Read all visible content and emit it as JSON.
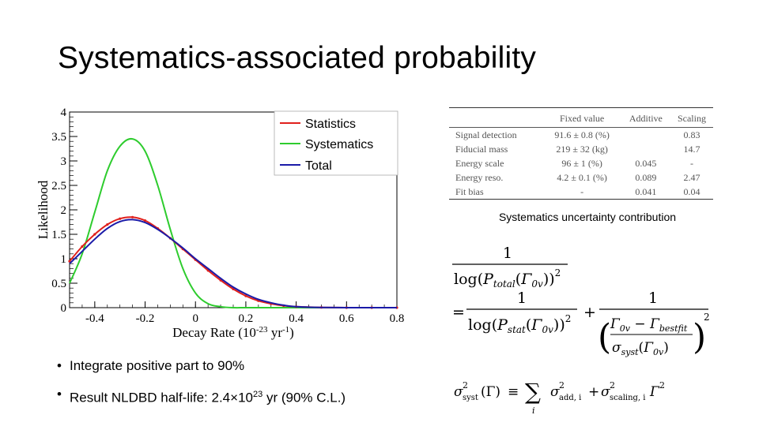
{
  "slide": {
    "title": "Systematics-associated probability"
  },
  "chart_data": {
    "type": "line",
    "title": "",
    "xlabel": "Decay Rate (10",
    "xlabel_exp": "-23",
    "xlabel_unit": " yr",
    "xlabel_unit_exp": "-1",
    "xlabel_close": ")",
    "ylabel": "Likelihood",
    "xlim": [
      -0.5,
      0.8
    ],
    "ylim": [
      0,
      4
    ],
    "xticks": [
      "-0.4",
      "-0.2",
      "0",
      "0.2",
      "0.4",
      "0.6",
      "0.8"
    ],
    "xtick_values": [
      -0.4,
      -0.2,
      0,
      0.2,
      0.4,
      0.6,
      0.8
    ],
    "yticks": [
      "0",
      "0.5",
      "1",
      "1.5",
      "2",
      "2.5",
      "3",
      "3.5",
      "4"
    ],
    "ytick_values": [
      0,
      0.5,
      1,
      1.5,
      2,
      2.5,
      3,
      3.5,
      4
    ],
    "legend_position": "top-right",
    "series": [
      {
        "name": "Statistics",
        "color": "#e0201c",
        "x": [
          -0.5,
          -0.45,
          -0.4,
          -0.35,
          -0.3,
          -0.25,
          -0.2,
          -0.15,
          -0.1,
          -0.05,
          0,
          0.05,
          0.1,
          0.15,
          0.2,
          0.25,
          0.3,
          0.35,
          0.4,
          0.5,
          0.6,
          0.7,
          0.8
        ],
        "y": [
          0.95,
          1.25,
          1.5,
          1.7,
          1.82,
          1.85,
          1.78,
          1.62,
          1.42,
          1.2,
          0.98,
          0.76,
          0.56,
          0.38,
          0.24,
          0.14,
          0.08,
          0.04,
          0.02,
          0.005,
          0,
          0,
          0
        ]
      },
      {
        "name": "Systematics",
        "color": "#2ecc2e",
        "x": [
          -0.5,
          -0.45,
          -0.4,
          -0.35,
          -0.3,
          -0.25,
          -0.2,
          -0.15,
          -0.1,
          -0.05,
          0,
          0.05,
          0.1,
          0.15,
          0.2,
          0.3,
          0.4,
          0.6,
          0.8
        ],
        "y": [
          0.5,
          1.1,
          1.95,
          2.8,
          3.3,
          3.45,
          3.2,
          2.5,
          1.6,
          0.8,
          0.3,
          0.08,
          0.02,
          0,
          0,
          0,
          0,
          0,
          0
        ]
      },
      {
        "name": "Total",
        "color": "#1a1aa8",
        "x": [
          -0.5,
          -0.45,
          -0.4,
          -0.35,
          -0.3,
          -0.25,
          -0.2,
          -0.15,
          -0.1,
          -0.05,
          0,
          0.05,
          0.1,
          0.15,
          0.2,
          0.25,
          0.3,
          0.35,
          0.4,
          0.5,
          0.6,
          0.7,
          0.8
        ],
        "y": [
          0.9,
          1.15,
          1.4,
          1.62,
          1.76,
          1.8,
          1.74,
          1.6,
          1.42,
          1.22,
          1.0,
          0.8,
          0.6,
          0.42,
          0.28,
          0.17,
          0.1,
          0.05,
          0.02,
          0.005,
          0,
          0,
          0
        ]
      }
    ]
  },
  "table": {
    "headers": [
      "",
      "Fixed value",
      "Additive",
      "Scaling"
    ],
    "rows": [
      [
        "Signal detection",
        "91.6 ± 0.8 (%)",
        "",
        "0.83"
      ],
      [
        "Fiducial mass",
        "219 ± 32 (kg)",
        "",
        "14.7"
      ],
      [
        "Energy scale",
        "96 ± 1 (%)",
        "0.045",
        "-"
      ],
      [
        "Energy reso.",
        "4.2 ± 0.1 (%)",
        "0.089",
        "2.47"
      ],
      [
        "Fit bias",
        "-",
        "0.041",
        "0.04"
      ]
    ],
    "caption": "Systematics uncertainty contribution"
  },
  "formula1": {
    "one": "1",
    "log": "log",
    "P": "P",
    "sub_total": "total",
    "sub_stat": "stat",
    "Gamma": "Γ",
    "sub_0v": "0v",
    "sq": "2",
    "equals": "=",
    "plus": "+",
    "minus": "−",
    "sub_bestfit": "bestfit",
    "sigma": "σ",
    "sub_syst": "syst"
  },
  "formula2": {
    "lhs_sigma": "σ",
    "sq": "2",
    "sub_syst": "syst",
    "arg": "(Γ)",
    "equiv": "≡",
    "sum": "∑",
    "sum_index": "i",
    "sub_add": "add, i",
    "plus": "+",
    "sub_scaling": "scaling, i",
    "Gamma": "Γ"
  },
  "bullets": [
    {
      "text": "Integrate positive part to 90%"
    },
    {
      "pre": "Result NLDBD half-life: 2.4×10",
      "sup": "23",
      "post": " yr (90% C.L.)"
    }
  ]
}
